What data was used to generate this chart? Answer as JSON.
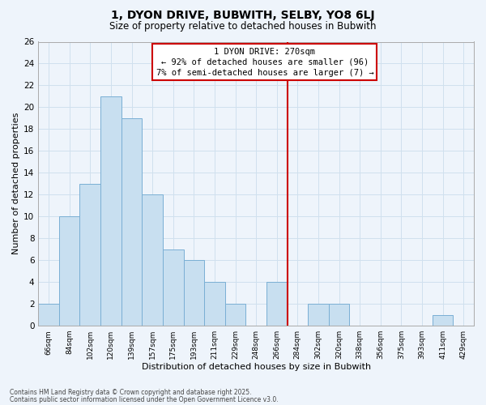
{
  "title": "1, DYON DRIVE, BUBWITH, SELBY, YO8 6LJ",
  "subtitle": "Size of property relative to detached houses in Bubwith",
  "xlabel": "Distribution of detached houses by size in Bubwith",
  "ylabel": "Number of detached properties",
  "bin_labels": [
    "66sqm",
    "84sqm",
    "102sqm",
    "120sqm",
    "139sqm",
    "157sqm",
    "175sqm",
    "193sqm",
    "211sqm",
    "229sqm",
    "248sqm",
    "266sqm",
    "284sqm",
    "302sqm",
    "320sqm",
    "338sqm",
    "356sqm",
    "375sqm",
    "393sqm",
    "411sqm",
    "429sqm"
  ],
  "bar_heights": [
    2,
    10,
    13,
    21,
    19,
    12,
    7,
    6,
    4,
    2,
    0,
    4,
    0,
    2,
    2,
    0,
    0,
    0,
    0,
    1,
    0
  ],
  "bar_color": "#c8dff0",
  "bar_edge_color": "#7aafd4",
  "vline_x_index": 11.5,
  "vline_color": "#cc0000",
  "ylim": [
    0,
    26
  ],
  "yticks": [
    0,
    2,
    4,
    6,
    8,
    10,
    12,
    14,
    16,
    18,
    20,
    22,
    24,
    26
  ],
  "annotation_title": "1 DYON DRIVE: 270sqm",
  "annotation_line1": "← 92% of detached houses are smaller (96)",
  "annotation_line2": "7% of semi-detached houses are larger (7) →",
  "footnote1": "Contains HM Land Registry data © Crown copyright and database right 2025.",
  "footnote2": "Contains public sector information licensed under the Open Government Licence v3.0.",
  "grid_color": "#d0e0ee",
  "background_color": "#eef4fb"
}
